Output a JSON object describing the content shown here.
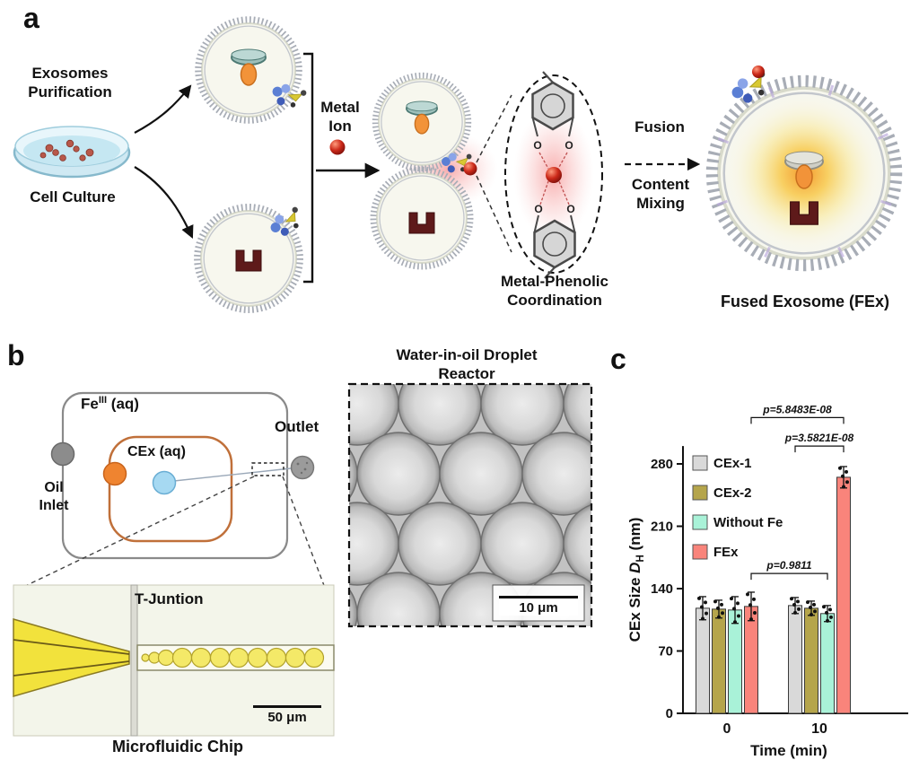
{
  "panel_a": {
    "label": "a",
    "exosomes_purification": "Exosomes Purification",
    "cell_culture": "Cell Culture",
    "metal_ion": "Metal Ion",
    "metal_phenolic_coordination": "Metal-Phenolic Coordination",
    "fusion": "Fusion",
    "content_mixing": "Content Mixing",
    "fused_exosome": "Fused Exosome (FEx)",
    "oxygen_atom": "O"
  },
  "panel_b": {
    "label": "b",
    "fe_label": {
      "base": "Fe",
      "sup": "III",
      "suffix": " (aq)"
    },
    "cex_aq": "CEx (aq)",
    "oil_inlet": "Oil Inlet",
    "outlet": "Outlet",
    "droplet_reactor_title": "Water-in-oil Droplet Reactor",
    "droplet_scale_bar": "10 μm",
    "t_junction": "T-Juntion",
    "chip_scale_bar": "50 μm",
    "chip_label": "Microfluidic Chip"
  },
  "panel_c": {
    "label": "c"
  },
  "chart_data": {
    "type": "bar",
    "title": "",
    "xlabel": "Time (min)",
    "ylabel": "CEx Size D_H (nm)",
    "ylabel_parts": {
      "prefix": "CEx Size ",
      "variable": "D",
      "subscript": "H",
      "suffix": " (nm)"
    },
    "categories": [
      "0",
      "10"
    ],
    "yticks": [
      0,
      70,
      140,
      210,
      280
    ],
    "ylim": [
      0,
      310
    ],
    "grid": false,
    "legend_position": "inside top-left",
    "series": [
      {
        "name": "CEx-1",
        "color": "#d9d9d9",
        "values": [
          118,
          121
        ],
        "errors": [
          13,
          9
        ]
      },
      {
        "name": "CEx-2",
        "color": "#b5a54b",
        "values": [
          117,
          118
        ],
        "errors": [
          10,
          8
        ]
      },
      {
        "name": "Without Fe",
        "color": "#a9f2d8",
        "values": [
          116,
          112
        ],
        "errors": [
          15,
          9
        ]
      },
      {
        "name": "FEx",
        "color": "#f9847b",
        "values": [
          120,
          265
        ],
        "errors": [
          16,
          12
        ]
      }
    ],
    "annotations": [
      {
        "text": "p=5.8483E-08",
        "from_group": 0,
        "from_series": "FEx",
        "to_group": 1,
        "to_series": "FEx",
        "level": 332
      },
      {
        "text": "p=3.5821E-08",
        "from_group": 1,
        "from_series": "CEx-1",
        "to_group": 1,
        "to_series": "FEx",
        "level": 300
      },
      {
        "text": "p=0.9811",
        "from_group": 0,
        "from_series": "FEx",
        "to_group": 1,
        "to_series": "Without Fe",
        "level": 157
      }
    ]
  }
}
